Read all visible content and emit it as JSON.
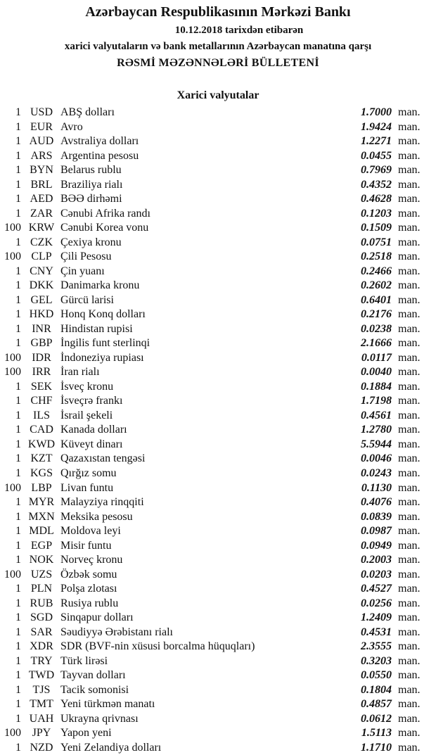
{
  "header": {
    "title": "Azərbaycan Respublikasının Mərkəzi Bankı",
    "date_line": "10.12.2018  tarixdən etibarən",
    "subtitle": "xarici valyutaların və bank metallarının Azərbaycan manatına qarşı",
    "bulletin": "RƏSMİ MƏZƏNNƏLƏRİ BÜLLETENİ",
    "section": "Xarici valyutalar"
  },
  "unit_label": "man.",
  "rates": [
    {
      "amount": "1",
      "code": "USD",
      "name": "ABŞ dolları",
      "rate": "1.7000"
    },
    {
      "amount": "1",
      "code": "EUR",
      "name": "Avro",
      "rate": "1.9424"
    },
    {
      "amount": "1",
      "code": "AUD",
      "name": "Avstraliya dolları",
      "rate": "1.2271"
    },
    {
      "amount": "1",
      "code": "ARS",
      "name": "Argentina pesosu",
      "rate": "0.0455"
    },
    {
      "amount": "1",
      "code": "BYN",
      "name": "Belarus rublu",
      "rate": "0.7969"
    },
    {
      "amount": "1",
      "code": "BRL",
      "name": "Braziliya rialı",
      "rate": "0.4352"
    },
    {
      "amount": "1",
      "code": "AED",
      "name": "BƏƏ dirhəmi",
      "rate": "0.4628"
    },
    {
      "amount": "1",
      "code": "ZAR",
      "name": "Cənubi Afrika randı",
      "rate": "0.1203"
    },
    {
      "amount": "100",
      "code": "KRW",
      "name": "Cənubi Korea vonu",
      "rate": "0.1509"
    },
    {
      "amount": "1",
      "code": "CZK",
      "name": "Çexiya kronu",
      "rate": "0.0751"
    },
    {
      "amount": "100",
      "code": "CLP",
      "name": "Çili Pesosu",
      "rate": "0.2518"
    },
    {
      "amount": "1",
      "code": "CNY",
      "name": "Çin yuanı",
      "rate": "0.2466"
    },
    {
      "amount": "1",
      "code": "DKK",
      "name": "Danimarka kronu",
      "rate": "0.2602"
    },
    {
      "amount": "1",
      "code": "GEL",
      "name": "Gürcü larisi",
      "rate": "0.6401"
    },
    {
      "amount": "1",
      "code": "HKD",
      "name": "Honq Konq dolları",
      "rate": "0.2176"
    },
    {
      "amount": "1",
      "code": "INR",
      "name": "Hindistan rupisi",
      "rate": "0.0238"
    },
    {
      "amount": "1",
      "code": "GBP",
      "name": "İngilis funt sterlinqi",
      "rate": "2.1666"
    },
    {
      "amount": "100",
      "code": "IDR",
      "name": "İndoneziya rupiası",
      "rate": "0.0117"
    },
    {
      "amount": "100",
      "code": "IRR",
      "name": "İran rialı",
      "rate": "0.0040"
    },
    {
      "amount": "1",
      "code": "SEK",
      "name": "İsveç kronu",
      "rate": "0.1884"
    },
    {
      "amount": "1",
      "code": "CHF",
      "name": "İsveçrə frankı",
      "rate": "1.7198"
    },
    {
      "amount": "1",
      "code": "ILS",
      "name": "İsrail şekeli",
      "rate": "0.4561"
    },
    {
      "amount": "1",
      "code": "CAD",
      "name": "Kanada dolları",
      "rate": "1.2780"
    },
    {
      "amount": "1",
      "code": "KWD",
      "name": "Küveyt dinarı",
      "rate": "5.5944"
    },
    {
      "amount": "1",
      "code": "KZT",
      "name": "Qazaxıstan tengəsi",
      "rate": "0.0046"
    },
    {
      "amount": "1",
      "code": "KGS",
      "name": "Qırğız somu",
      "rate": "0.0243"
    },
    {
      "amount": "100",
      "code": "LBP",
      "name": "Livan funtu",
      "rate": "0.1130"
    },
    {
      "amount": "1",
      "code": "MYR",
      "name": "Malayziya rinqqiti",
      "rate": "0.4076"
    },
    {
      "amount": "1",
      "code": "MXN",
      "name": "Meksika pesosu",
      "rate": "0.0839"
    },
    {
      "amount": "1",
      "code": "MDL",
      "name": "Moldova leyi",
      "rate": "0.0987"
    },
    {
      "amount": "1",
      "code": "EGP",
      "name": "Misir funtu",
      "rate": "0.0949"
    },
    {
      "amount": "1",
      "code": "NOK",
      "name": "Norveç kronu",
      "rate": "0.2003"
    },
    {
      "amount": "100",
      "code": "UZS",
      "name": "Özbək somu",
      "rate": "0.0203"
    },
    {
      "amount": "1",
      "code": "PLN",
      "name": "Polşa zlotası",
      "rate": "0.4527"
    },
    {
      "amount": "1",
      "code": "RUB",
      "name": "Rusiya rublu",
      "rate": "0.0256"
    },
    {
      "amount": "1",
      "code": "SGD",
      "name": "Sinqapur dolları",
      "rate": "1.2409"
    },
    {
      "amount": "1",
      "code": "SAR",
      "name": "Səudiyyə Ərəbistanı rialı",
      "rate": "0.4531"
    },
    {
      "amount": "1",
      "code": "XDR",
      "name": "SDR (BVF-nin xüsusi borcalma hüquqları)",
      "rate": "2.3555"
    },
    {
      "amount": "1",
      "code": "TRY",
      "name": "Türk lirəsi",
      "rate": "0.3203"
    },
    {
      "amount": "1",
      "code": "TWD",
      "name": "Tayvan dolları",
      "rate": "0.0550"
    },
    {
      "amount": "1",
      "code": "TJS",
      "name": "Tacik somonisi",
      "rate": "0.1804"
    },
    {
      "amount": "1",
      "code": "TMT",
      "name": "Yeni türkmən manatı",
      "rate": "0.4857"
    },
    {
      "amount": "1",
      "code": "UAH",
      "name": "Ukrayna qrivnası",
      "rate": "0.0612"
    },
    {
      "amount": "100",
      "code": "JPY",
      "name": "Yapon yeni",
      "rate": "1.5113"
    },
    {
      "amount": "1",
      "code": "NZD",
      "name": "Yeni Zelandiya dolları",
      "rate": "1.1710"
    }
  ]
}
